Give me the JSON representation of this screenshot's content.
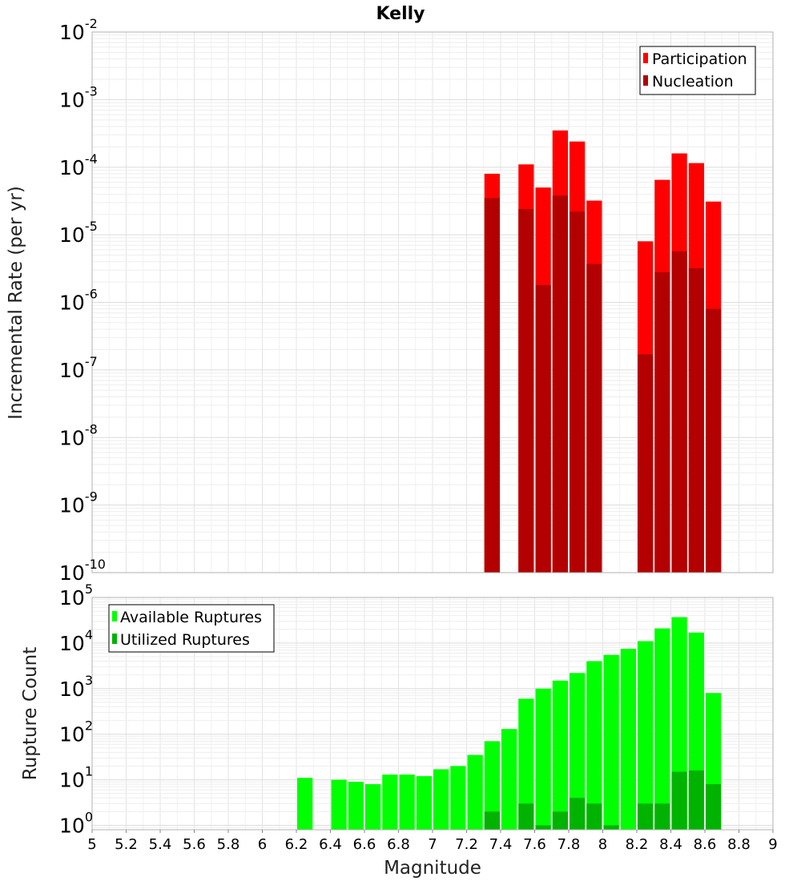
{
  "chart_data": [
    {
      "type": "bar",
      "title": "Kelly",
      "xlabel": "Magnitude",
      "ylabel": "Incremental Rate (per yr)",
      "xlim": [
        5,
        9
      ],
      "ylim": [
        1e-10,
        0.01
      ],
      "yscale": "log",
      "bin_width": 0.1,
      "grid": true,
      "legend_position": "top-right",
      "ytick_labels": [
        {
          "base": "10",
          "exp": "-2"
        },
        {
          "base": "10",
          "exp": "-3"
        },
        {
          "base": "10",
          "exp": "-4"
        },
        {
          "base": "10",
          "exp": "-5"
        },
        {
          "base": "10",
          "exp": "-6"
        },
        {
          "base": "10",
          "exp": "-7"
        },
        {
          "base": "10",
          "exp": "-8"
        },
        {
          "base": "10",
          "exp": "-9"
        },
        {
          "base": "10",
          "exp": "-10"
        }
      ],
      "series": [
        {
          "name": "Participation",
          "color": "#ff0000",
          "x": [
            7.35,
            7.55,
            7.65,
            7.75,
            7.85,
            7.95,
            8.25,
            8.35,
            8.45,
            8.55,
            8.65
          ],
          "values": [
            8e-05,
            0.00011,
            5e-05,
            0.00035,
            0.00024,
            3.2e-05,
            8e-06,
            6.5e-05,
            0.00016,
            0.000115,
            3.1e-05
          ]
        },
        {
          "name": "Nucleation",
          "color": "#b30000",
          "x": [
            7.35,
            7.55,
            7.65,
            7.75,
            7.85,
            7.95,
            8.25,
            8.35,
            8.45,
            8.55,
            8.65
          ],
          "values": [
            3.5e-05,
            2.4e-05,
            1.8e-06,
            3.8e-05,
            2.2e-05,
            3.7e-06,
            1.7e-07,
            2.8e-06,
            5.7e-06,
            3.2e-06,
            8e-07
          ]
        }
      ]
    },
    {
      "type": "bar",
      "title": "",
      "xlabel": "Magnitude",
      "ylabel": "Rupture Count",
      "xlim": [
        5,
        9
      ],
      "ylim": [
        0.8,
        100000
      ],
      "yscale": "log",
      "bin_width": 0.1,
      "grid": true,
      "legend_position": "top-left",
      "xtick_labels": [
        "5",
        "5.2",
        "5.4",
        "5.6",
        "5.8",
        "6",
        "6.2",
        "6.4",
        "6.6",
        "6.8",
        "7",
        "7.2",
        "7.4",
        "7.6",
        "7.8",
        "8",
        "8.2",
        "8.4",
        "8.6",
        "8.8",
        "9"
      ],
      "ytick_labels": [
        {
          "base": "10",
          "exp": "5"
        },
        {
          "base": "10",
          "exp": "4"
        },
        {
          "base": "10",
          "exp": "3"
        },
        {
          "base": "10",
          "exp": "2"
        },
        {
          "base": "10",
          "exp": "1"
        },
        {
          "base": "10",
          "exp": "0"
        }
      ],
      "series": [
        {
          "name": "Available Ruptures",
          "color": "#00ff00",
          "x": [
            6.25,
            6.45,
            6.55,
            6.65,
            6.75,
            6.85,
            6.95,
            7.05,
            7.15,
            7.25,
            7.35,
            7.45,
            7.55,
            7.65,
            7.75,
            7.85,
            7.95,
            8.05,
            8.15,
            8.25,
            8.35,
            8.45,
            8.55,
            8.65
          ],
          "values": [
            11,
            10,
            9,
            8,
            13,
            13,
            12,
            17,
            20,
            35,
            70,
            130,
            600,
            1000,
            1500,
            2200,
            4000,
            5500,
            7500,
            11000,
            21000,
            37000,
            17000,
            800
          ]
        },
        {
          "name": "Utilized Ruptures",
          "color": "#00b300",
          "x": [
            7.35,
            7.55,
            7.65,
            7.75,
            7.85,
            7.95,
            8.05,
            8.25,
            8.35,
            8.45,
            8.55,
            8.65
          ],
          "values": [
            2,
            3,
            1,
            2,
            4,
            3,
            1,
            3,
            3,
            15,
            16,
            8
          ]
        }
      ]
    }
  ]
}
